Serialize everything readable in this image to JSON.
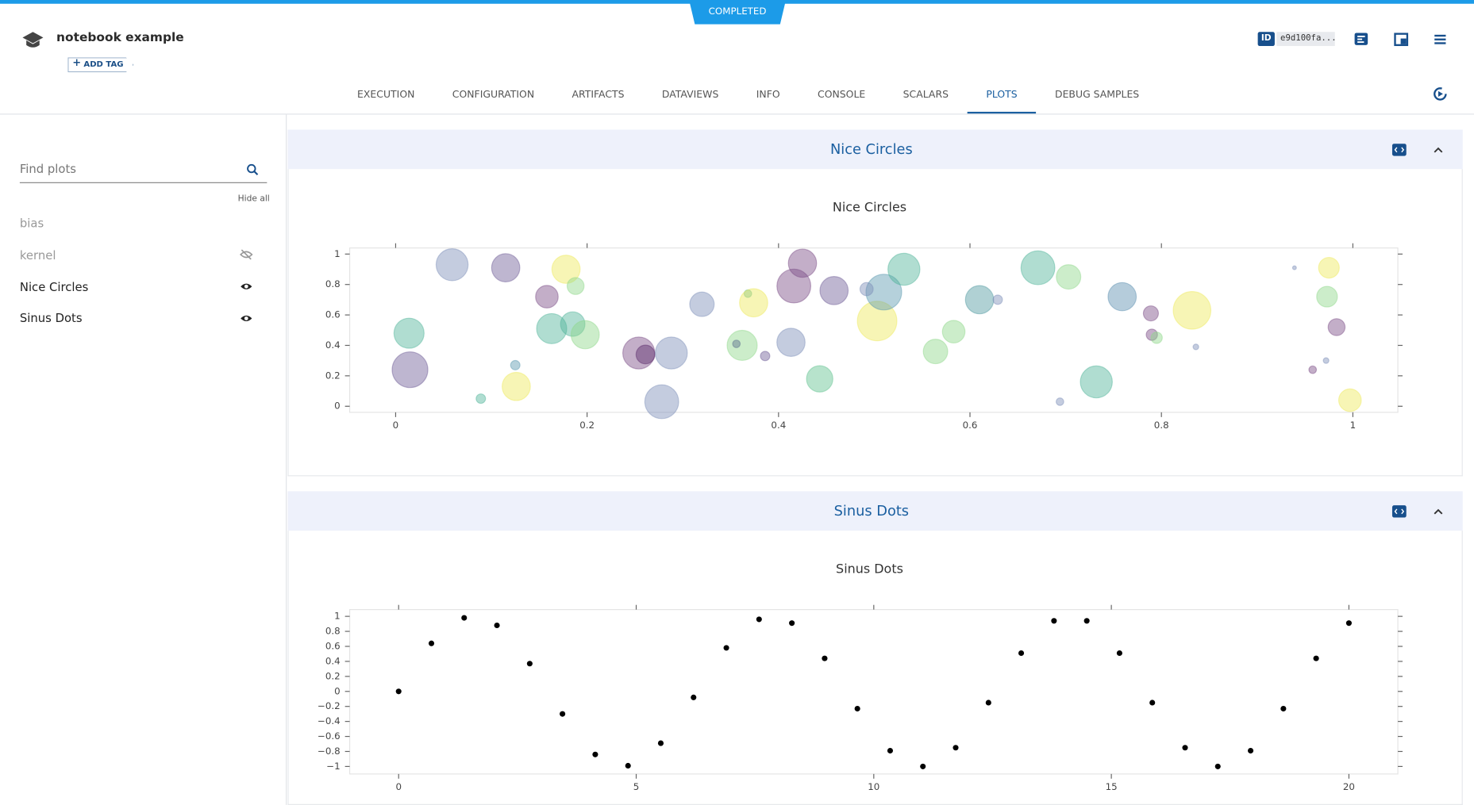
{
  "status": "COMPLETED",
  "header": {
    "title": "notebook example",
    "add_tag": "ADD TAG",
    "id_label": "ID",
    "id_value": "e9d100fa..."
  },
  "tabs": [
    "EXECUTION",
    "CONFIGURATION",
    "ARTIFACTS",
    "DATAVIEWS",
    "INFO",
    "CONSOLE",
    "SCALARS",
    "PLOTS",
    "DEBUG SAMPLES"
  ],
  "sidebar": {
    "search_placeholder": "Find plots",
    "hide_all": "Hide all",
    "items": [
      "bias",
      "kernel",
      "Nice Circles",
      "Sinus Dots"
    ]
  },
  "panels": [
    {
      "title": "Nice Circles"
    },
    {
      "title": "Sinus Dots"
    }
  ],
  "chart_data": [
    {
      "type": "scatter",
      "title": "Nice Circles",
      "x": [
        0.059,
        0.115,
        0.178,
        0.188,
        0.158,
        0.014,
        0.015,
        0.089,
        0.125,
        0.126,
        0.163,
        0.185,
        0.198,
        0.254,
        0.261,
        0.288,
        0.278,
        0.32,
        0.368,
        0.374,
        0.362,
        0.356,
        0.386,
        0.413,
        0.416,
        0.425,
        0.458,
        0.443,
        0.503,
        0.51,
        0.492,
        0.531,
        0.564,
        0.583,
        0.61,
        0.629,
        0.671,
        0.703,
        0.694,
        0.732,
        0.759,
        0.789,
        0.79,
        0.795,
        0.832,
        0.836,
        0.939,
        0.975,
        0.973,
        0.983,
        0.972,
        0.958,
        0.997
      ],
      "values": [
        0.93,
        0.91,
        0.9,
        0.79,
        0.72,
        0.48,
        0.24,
        0.05,
        0.27,
        0.13,
        0.51,
        0.54,
        0.47,
        0.35,
        0.34,
        0.35,
        0.03,
        0.67,
        0.74,
        0.68,
        0.4,
        0.41,
        0.33,
        0.42,
        0.79,
        0.94,
        0.76,
        0.18,
        0.56,
        0.75,
        0.77,
        0.9,
        0.36,
        0.49,
        0.7,
        0.7,
        0.91,
        0.85,
        0.03,
        0.16,
        0.72,
        0.61,
        0.47,
        0.45,
        0.63,
        0.39,
        0.91,
        0.91,
        0.72,
        0.52,
        0.3,
        0.24,
        0.04
      ],
      "sizes": [
        34,
        30,
        30,
        18,
        24,
        32,
        38,
        10,
        10,
        30,
        32,
        26,
        30,
        34,
        20,
        34,
        36,
        26,
        8,
        30,
        32,
        8,
        10,
        30,
        36,
        30,
        30,
        28,
        42,
        38,
        14,
        34,
        26,
        24,
        30,
        10,
        36,
        26,
        8,
        34,
        30,
        16,
        12,
        12,
        40,
        6,
        4,
        22,
        22,
        18,
        6,
        8,
        24
      ],
      "colors": [
        "#7d8fb8",
        "#6f5d96",
        "#ede85a",
        "#8fd68a",
        "#7b4b86",
        "#4fb49a",
        "#6f5d96",
        "#4fb49a",
        "#5a9ab0",
        "#ede85a",
        "#4fb49a",
        "#4fb49a",
        "#8fd68a",
        "#7b4b86",
        "#5a2d6a",
        "#7d8fb8",
        "#7d8fb8",
        "#7d8fb8",
        "#4fb49a",
        "#ede85a",
        "#8fd68a",
        "#5b6e8c",
        "#6f5d96",
        "#7d8fb8",
        "#7b4b86",
        "#7b4b86",
        "#6f5d96",
        "#5fc08f",
        "#ede85a",
        "#5a9ab0",
        "#7d8fb8",
        "#4fb49a",
        "#8fd68a",
        "#8fd68a",
        "#4f9aa0",
        "#7d8fb8",
        "#4fb49a",
        "#8fd68a",
        "#7d8fb8",
        "#4fb49a",
        "#5a8fb0",
        "#7b4b86",
        "#7b4b86",
        "#8fd68a",
        "#ede85a",
        "#7d8fb8",
        "#7d8fb8",
        "#ede85a",
        "#8fd68a",
        "#7b4b86",
        "#7d8fb8",
        "#7b4b86",
        "#ede85a"
      ],
      "opacity": 0.45,
      "xlim": [
        -0.048,
        1.047
      ],
      "ylim": [
        -0.04,
        1.04
      ],
      "xticks": [
        0,
        0.2,
        0.4,
        0.6,
        0.8,
        1
      ],
      "yticks": [
        0,
        0.2,
        0.4,
        0.6,
        0.8,
        1
      ]
    },
    {
      "type": "scatter",
      "title": "Sinus Dots",
      "x": [
        0,
        0.69,
        1.379,
        2.069,
        2.759,
        3.448,
        4.138,
        4.828,
        5.517,
        6.207,
        6.897,
        7.586,
        8.276,
        8.966,
        9.655,
        10.345,
        11.034,
        11.724,
        12.414,
        13.103,
        13.793,
        14.483,
        15.172,
        15.862,
        16.552,
        17.241,
        17.931,
        18.621,
        19.31,
        20
      ],
      "values": [
        0,
        0.64,
        0.98,
        0.88,
        0.37,
        -0.3,
        -0.84,
        -0.99,
        -0.69,
        -0.08,
        0.58,
        0.96,
        0.91,
        0.44,
        -0.23,
        -0.79,
        -1.0,
        -0.75,
        -0.15,
        0.51,
        0.94,
        0.94,
        0.51,
        -0.15,
        -0.75,
        -1.0,
        -0.79,
        -0.23,
        0.44,
        0.91
      ],
      "color": "#000000",
      "marker_size": 6,
      "xlim": [
        -1.03,
        21.03
      ],
      "ylim": [
        -1.1,
        1.09
      ],
      "xticks": [
        0,
        5,
        10,
        15,
        20
      ],
      "yticks": [
        1,
        0.8,
        0.6,
        0.4,
        0.2,
        0,
        {
          "value": -0.2,
          "label": "−0.2"
        },
        {
          "value": -0.4,
          "label": "−0.4"
        },
        {
          "value": -0.6,
          "label": "−0.6"
        },
        {
          "value": -0.8,
          "label": "−0.8"
        },
        {
          "value": -1,
          "label": "−1"
        }
      ]
    }
  ]
}
